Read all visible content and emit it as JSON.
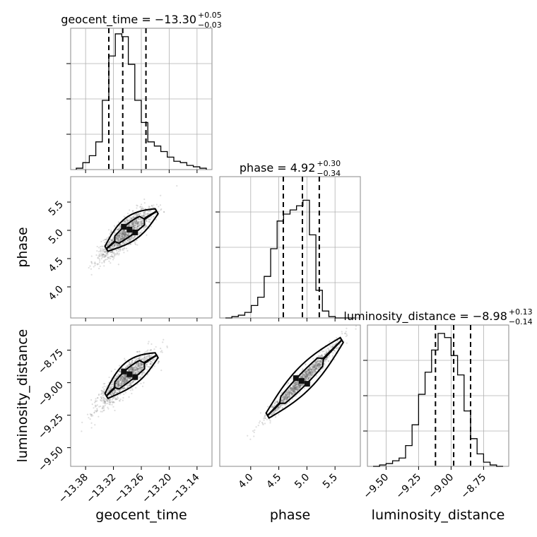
{
  "chart_data": {
    "type": "corner",
    "parameters": [
      "geocent_time",
      "phase",
      "luminosity_distance"
    ],
    "axis_labels": [
      "geocent_time",
      "phase",
      "luminosity_distance"
    ],
    "ranges": [
      [
        -13.4,
        -13.12
      ],
      [
        3.55,
        5.85
      ],
      [
        -9.6,
        -8.6
      ]
    ],
    "ticks": [
      {
        "values": [
          -13.38,
          -13.32,
          -13.26,
          -13.2,
          -13.14
        ],
        "labels": [
          "−13.38",
          "−13.32",
          "−13.26",
          "−13.20",
          "−13.14"
        ]
      },
      {
        "values": [
          4.0,
          4.5,
          5.0,
          5.5
        ],
        "labels": [
          "4.0",
          "4.5",
          "5.0",
          "5.5"
        ]
      },
      {
        "values": [
          -9.5,
          -9.25,
          -9.0,
          -8.75
        ],
        "labels": [
          "−9.50",
          "−9.25",
          "−9.00",
          "−8.75"
        ]
      }
    ],
    "titles": [
      {
        "main": "geocent_time = −13.30",
        "sup": "+0.05",
        "sub": "−0.03"
      },
      {
        "main": "phase = 4.92",
        "sup": "+0.30",
        "sub": "−0.34"
      },
      {
        "main": "luminosity_distance = −8.98",
        "sup": "+0.13",
        "sub": "−0.14"
      }
    ],
    "quantiles": [
      [
        -13.33,
        -13.3,
        -13.25
      ],
      [
        4.58,
        4.92,
        5.22
      ],
      [
        -9.12,
        -8.98,
        -8.85
      ]
    ],
    "histograms": [
      {
        "edges_start": -13.4,
        "bin_width": 0.014,
        "counts": [
          0.01,
          0.05,
          0.1,
          0.2,
          0.5,
          0.82,
          0.98,
          0.96,
          0.76,
          0.5,
          0.34,
          0.2,
          0.17,
          0.13,
          0.09,
          0.06,
          0.05,
          0.03,
          0.02,
          0.01
        ]
      },
      {
        "edges_start": 3.55,
        "bin_width": 0.115,
        "counts": [
          0.0,
          0.01,
          0.02,
          0.04,
          0.09,
          0.15,
          0.3,
          0.5,
          0.7,
          0.75,
          0.78,
          0.81,
          0.85,
          0.6,
          0.2,
          0.05,
          0.01,
          0.0,
          0.0,
          0.0
        ]
      },
      {
        "edges_start": -9.6,
        "bin_width": 0.05,
        "counts": [
          0.0,
          0.01,
          0.02,
          0.04,
          0.06,
          0.15,
          0.3,
          0.52,
          0.68,
          0.84,
          0.96,
          0.93,
          0.8,
          0.66,
          0.4,
          0.2,
          0.09,
          0.03,
          0.01,
          0.0
        ]
      }
    ]
  }
}
